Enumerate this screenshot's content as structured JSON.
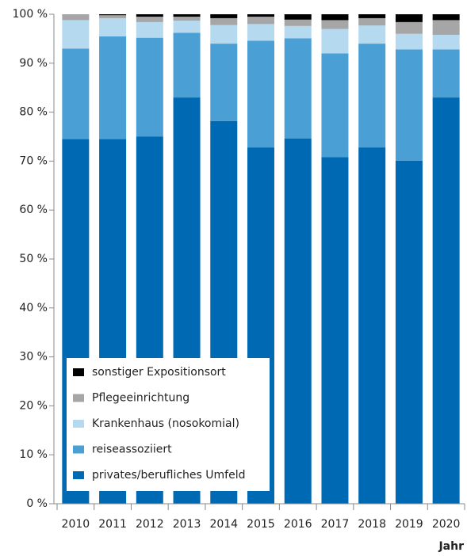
{
  "chart_data": {
    "type": "stacked_bar",
    "x_axis_label": "Jahr",
    "categories": [
      "2010",
      "2011",
      "2012",
      "2013",
      "2014",
      "2015",
      "2016",
      "2017",
      "2018",
      "2019",
      "2020"
    ],
    "series": [
      {
        "name": "privates/berufliches Umfeld",
        "color": "#0069b4",
        "values": [
          74.5,
          74.5,
          75,
          83,
          78.2,
          72.8,
          74.6,
          70.8,
          72.8,
          70.1,
          83
        ]
      },
      {
        "name": "reiseassoziiert",
        "color": "#4a9fd4",
        "values": [
          18.5,
          21,
          20.2,
          13.2,
          15.8,
          21.8,
          20.5,
          21.2,
          21.2,
          22.7,
          9.8
        ]
      },
      {
        "name": "Krankenhaus (nosokomial)",
        "color": "#b5daf0",
        "values": [
          5.8,
          3.7,
          3.2,
          2.5,
          3.8,
          3.4,
          2.5,
          5.0,
          3.7,
          3.2,
          3.0
        ]
      },
      {
        "name": "Pflegeeinrichtung",
        "color": "#a6a6a6",
        "values": [
          1.2,
          0.6,
          1.1,
          0.8,
          1.4,
          1.5,
          1.3,
          1.8,
          1.5,
          2.4,
          3.0
        ]
      },
      {
        "name": "sonstiger Expositionsort",
        "color": "#000000",
        "values": [
          0,
          0.2,
          0.5,
          0.5,
          0.8,
          0.5,
          1.1,
          1.2,
          0.8,
          1.6,
          1.2
        ]
      }
    ],
    "ylim": [
      0,
      100
    ],
    "yticks": [
      {
        "value": 0,
        "label": "0 %"
      },
      {
        "value": 10,
        "label": "10 %"
      },
      {
        "value": 20,
        "label": "20 %"
      },
      {
        "value": 30,
        "label": "30 %"
      },
      {
        "value": 40,
        "label": "40 %"
      },
      {
        "value": 50,
        "label": "50 %"
      },
      {
        "value": 60,
        "label": "60 %"
      },
      {
        "value": 70,
        "label": "70 %"
      },
      {
        "value": 80,
        "label": "80 %"
      },
      {
        "value": 90,
        "label": "90 %"
      },
      {
        "value": 100,
        "label": "100 %"
      }
    ],
    "legend": "lower-left"
  }
}
